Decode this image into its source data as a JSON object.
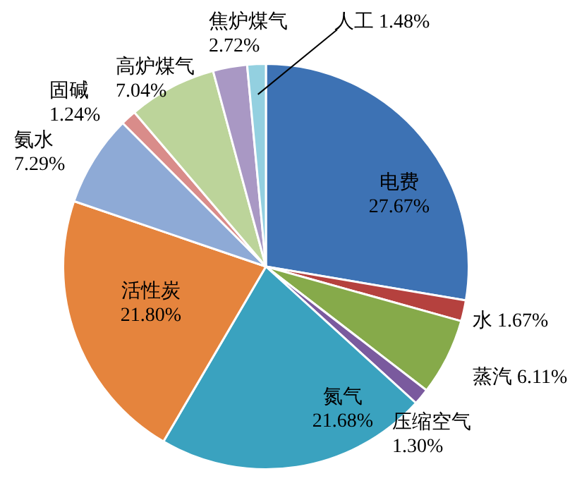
{
  "chart_data": {
    "type": "pie",
    "categories": [
      "电费",
      "水",
      "蒸汽",
      "压缩空气",
      "氮气",
      "活性炭",
      "氨水",
      "固碱",
      "高炉煤气",
      "焦炉煤气",
      "人工"
    ],
    "values": [
      27.67,
      1.67,
      6.11,
      1.3,
      21.68,
      21.8,
      7.29,
      1.24,
      7.04,
      2.72,
      1.48
    ],
    "value_labels": [
      "27.67%",
      "1.67%",
      "6.11%",
      "1.30%",
      "21.68%",
      "21.80%",
      "7.29%",
      "1.24%",
      "7.04%",
      "2.72%",
      "1.48%"
    ],
    "colors": [
      "#3d72b4",
      "#b5413e",
      "#86aa4a",
      "#7a5a9e",
      "#3aa2bf",
      "#e5843d",
      "#8eaad6",
      "#d98c8a",
      "#bcd49a",
      "#a998c4",
      "#93d0e0"
    ]
  }
}
